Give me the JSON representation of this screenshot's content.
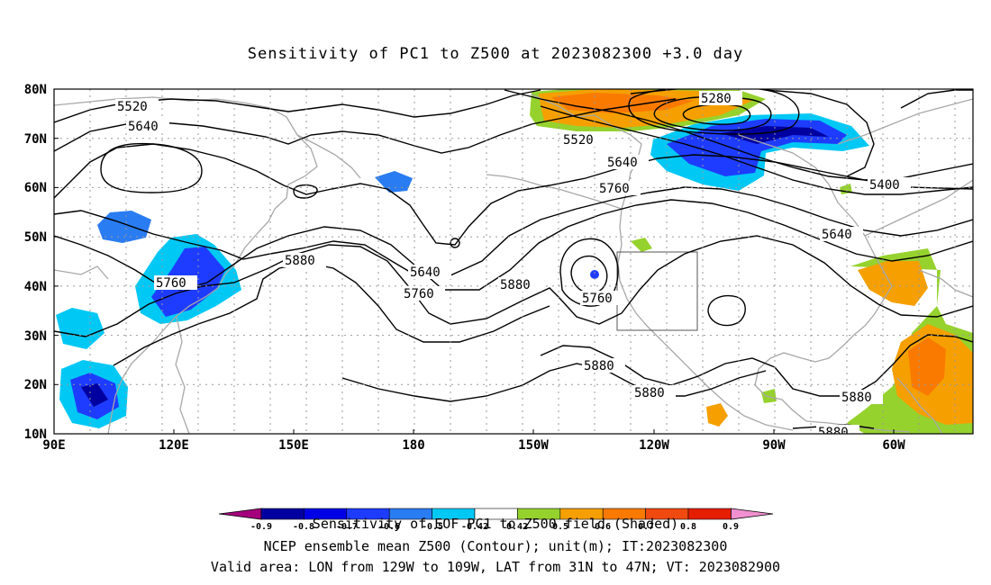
{
  "title": "Sensitivity of PC1 to Z500 at 2023082300 +3.0 day",
  "map": {
    "lon_range": [
      90,
      309
    ],
    "lat_range": [
      10,
      80
    ],
    "lat_labels": [
      "80N",
      "70N",
      "60N",
      "50N",
      "40N",
      "30N",
      "20N",
      "10N"
    ],
    "lon_labels": [
      "90E",
      "120E",
      "150E",
      "180",
      "150W",
      "120W",
      "90W",
      "60W"
    ],
    "contour_labels": [
      "5520",
      "5640",
      "5760",
      "5880",
      "5640",
      "5760",
      "5880",
      "5760",
      "5880",
      "5880",
      "5880",
      "5880",
      "5280",
      "5520",
      "5640",
      "5760",
      "5400",
      "5640"
    ],
    "valid_box": {
      "lon_w": 129,
      "lon_e": 109,
      "lat_s": 31,
      "lat_n": 47
    }
  },
  "colorbar": {
    "colors": [
      "#a4007d",
      "#0000a0",
      "#0000e6",
      "#1e3cff",
      "#2a7cf2",
      "#00c8f5",
      "#ffffff",
      "#96d22d",
      "#f5a000",
      "#fa7a00",
      "#f04a10",
      "#e61e00",
      "#f090d0"
    ],
    "tick_labels": [
      "-0.9",
      "-0.8",
      "-0.7",
      "-0.6",
      "-0.5",
      "-0.42",
      "0.42",
      "0.5",
      "0.6",
      "0.7",
      "0.8",
      "0.9"
    ]
  },
  "captions": {
    "line1": "Sensitivity of EOF PC1 to Z500 field (Shaded)",
    "line2": "NCEP ensemble mean Z500 (Contour); unit(m); IT:2023082300",
    "line3": "Valid area: LON from 129W to 109W, LAT from 31N to 47N; VT: 2023082900"
  }
}
